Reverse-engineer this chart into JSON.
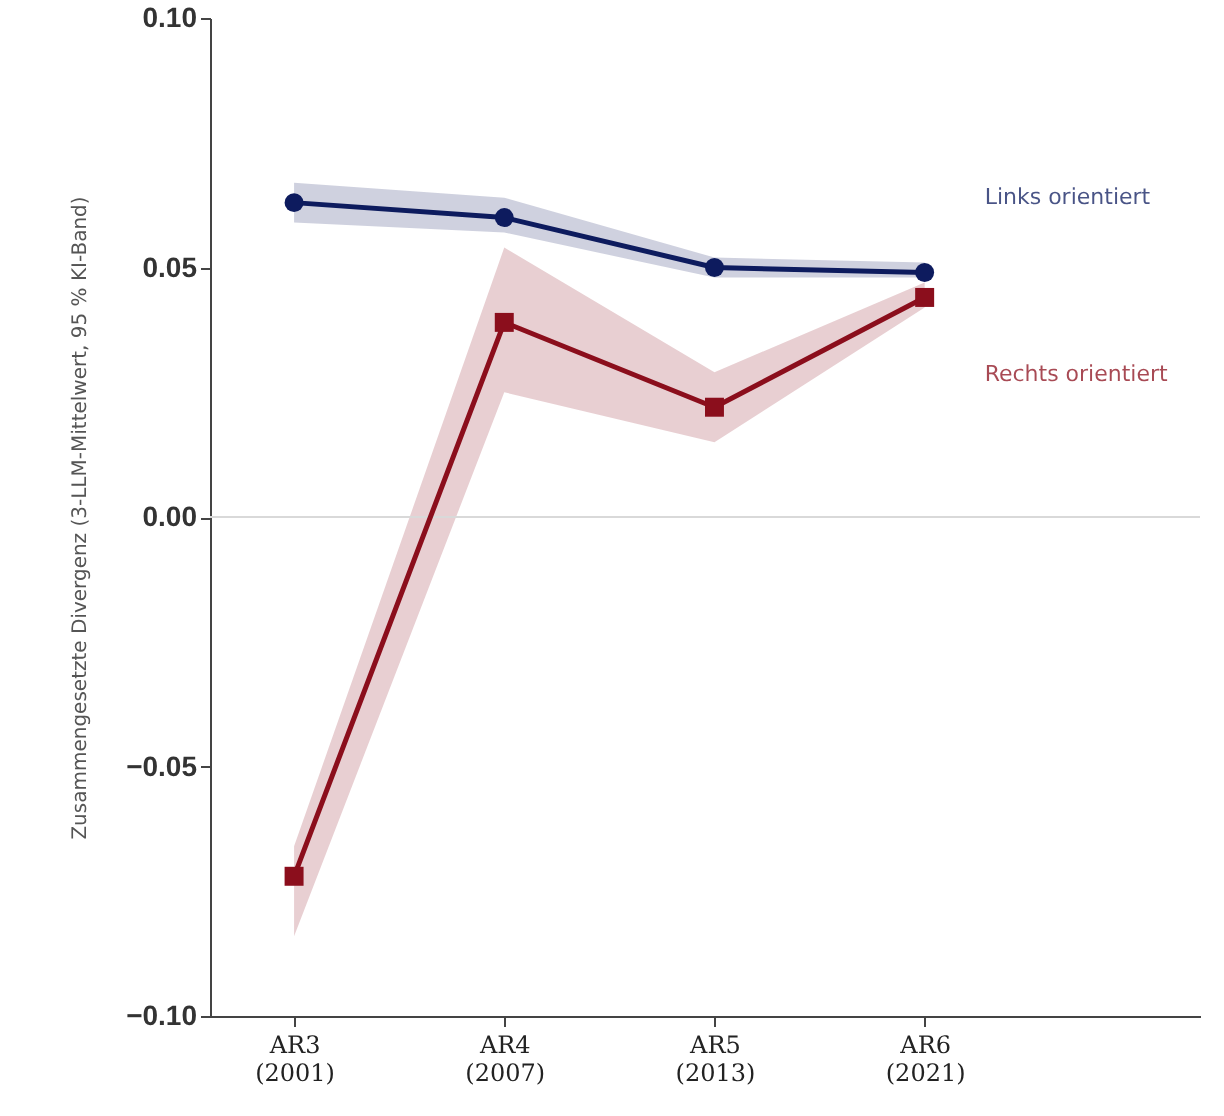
{
  "chart_data": {
    "type": "line",
    "ylabel": "Zusammengesetzte Divergenz (3-LLM-Mittelwert, 95 % KI-Band)",
    "categories": [
      "AR3\n(2001)",
      "AR4\n(2007)",
      "AR5\n(2013)",
      "AR6\n(2021)"
    ],
    "series": [
      {
        "name": "Links orientiert",
        "color": "#0d1b5e",
        "marker": "circle",
        "values": [
          0.063,
          0.06,
          0.05,
          0.049
        ],
        "lower": [
          0.059,
          0.057,
          0.048,
          0.048
        ],
        "upper": [
          0.067,
          0.064,
          0.052,
          0.051
        ]
      },
      {
        "name": "Rechts orientiert",
        "color": "#8b0e1c",
        "marker": "square",
        "values": [
          -0.072,
          0.039,
          0.022,
          0.044
        ],
        "lower": [
          -0.084,
          0.025,
          0.015,
          0.042
        ],
        "upper": [
          -0.066,
          0.054,
          0.029,
          0.047
        ]
      }
    ],
    "ylim": [
      -0.1,
      0.1
    ],
    "yticks": [
      {
        "value": -0.1,
        "label": "−0.10"
      },
      {
        "value": -0.05,
        "label": "−0.05"
      },
      {
        "value": 0,
        "label": "0.00"
      },
      {
        "value": 0.05,
        "label": "0.05"
      },
      {
        "value": 0.1,
        "label": "0.10"
      }
    ],
    "ref_lines": [
      {
        "axis": "y",
        "value": 0,
        "color": "#d9d9d9"
      }
    ],
    "grid": false,
    "line_style": "solid"
  }
}
